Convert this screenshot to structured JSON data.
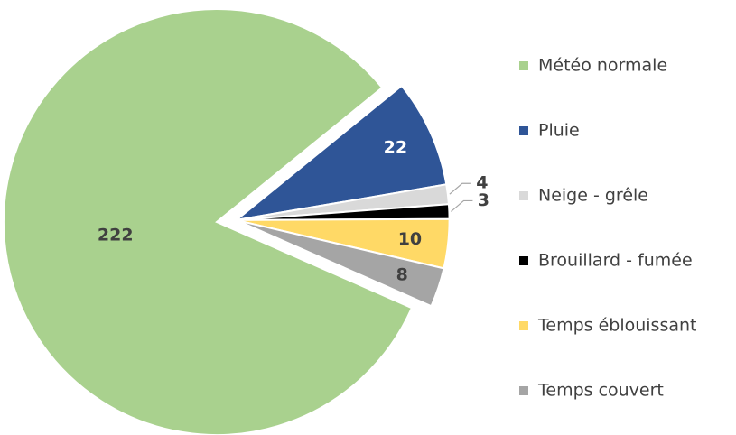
{
  "chart_data": {
    "type": "pie",
    "categories": [
      "Météo normale",
      "Pluie",
      "Neige - grêle",
      "Brouillard - fumée",
      "Temps éblouissant",
      "Temps couvert"
    ],
    "values": [
      222,
      22,
      4,
      3,
      10,
      8
    ],
    "colors": [
      "#a9d18e",
      "#2f5597",
      "#d9d9d9",
      "#000000",
      "#ffd966",
      "#a5a5a5"
    ],
    "legend": "right"
  }
}
